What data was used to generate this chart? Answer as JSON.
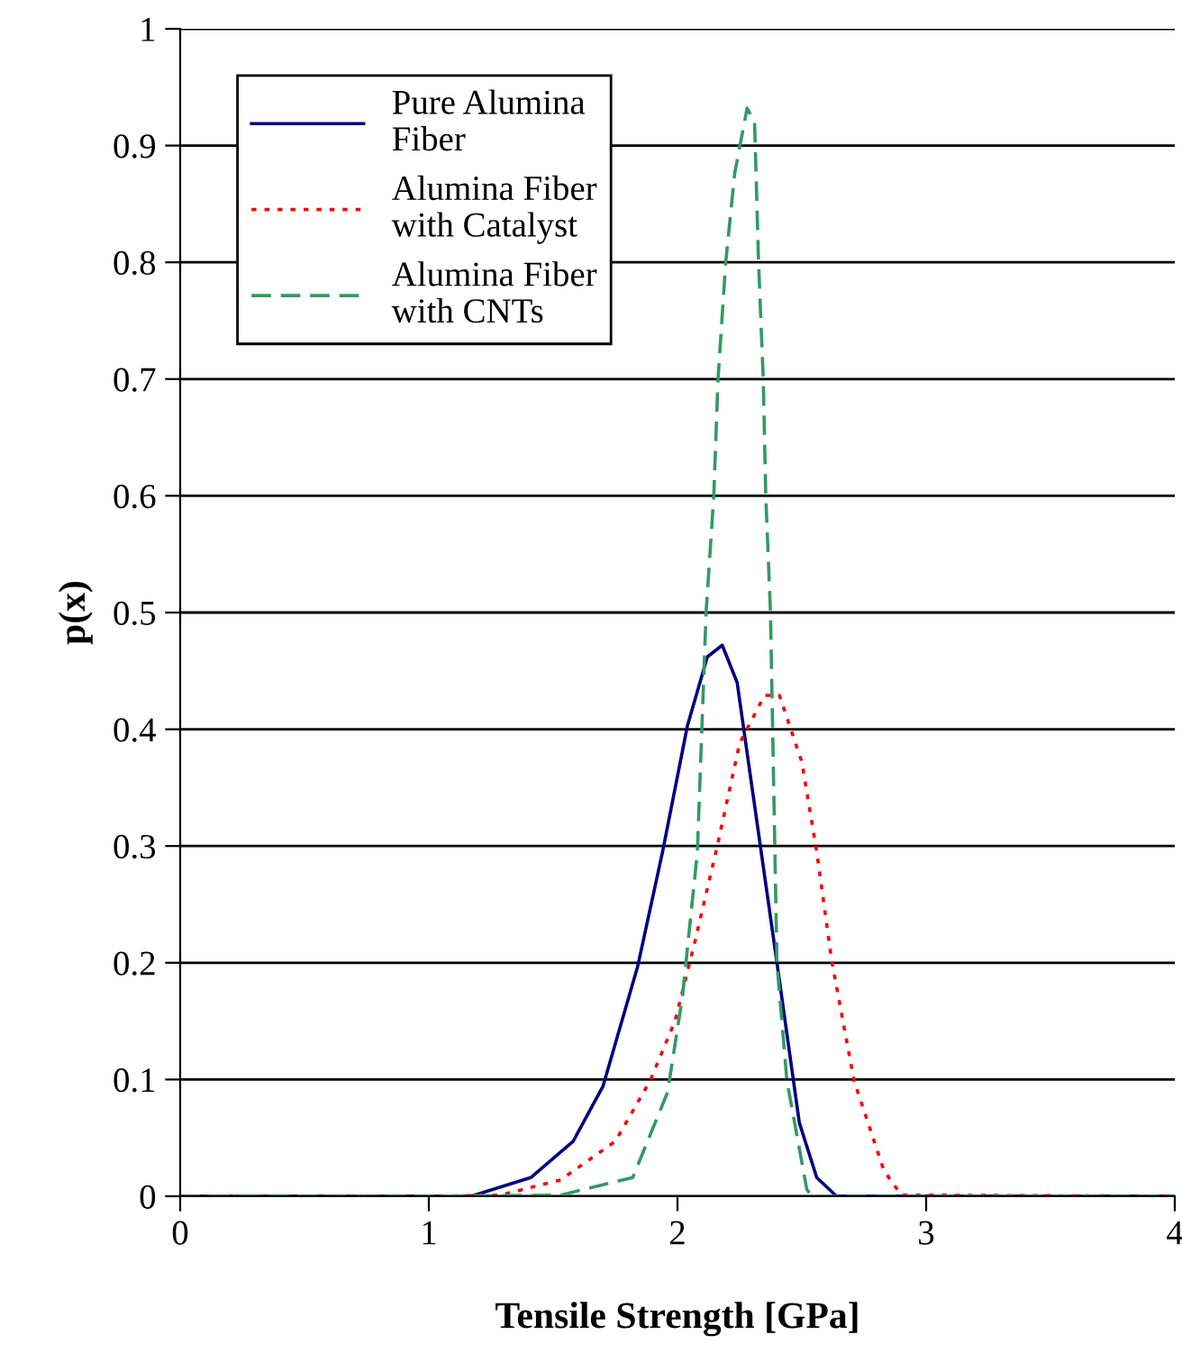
{
  "chart_data": {
    "type": "line",
    "xlabel": "Tensile Strength [GPa]",
    "ylabel": "p(x)",
    "xlim": [
      0,
      4
    ],
    "ylim": [
      0,
      1
    ],
    "xticks": [
      0,
      1,
      2,
      3,
      4
    ],
    "yticks": [
      0,
      0.1,
      0.2,
      0.3,
      0.4,
      0.5,
      0.6,
      0.7,
      0.8,
      0.9,
      1
    ],
    "grid": "y",
    "legend": "top left",
    "series": [
      {
        "name": "Pure Alumina Fiber",
        "color": "#000080",
        "line_style": "solid",
        "x": [
          0,
          1.0,
          1.17,
          1.41,
          1.58,
          1.7,
          1.84,
          1.94,
          2.04,
          2.12,
          2.18,
          2.24,
          2.3,
          2.4,
          2.49,
          2.56,
          2.64,
          4
        ],
        "values": [
          0,
          0,
          0,
          0.016,
          0.047,
          0.094,
          0.197,
          0.295,
          0.403,
          0.462,
          0.472,
          0.44,
          0.35,
          0.2,
          0.063,
          0.016,
          0,
          0
        ]
      },
      {
        "name": "Alumina Fiber with Catalyst",
        "color": "#ff0000",
        "line_style": "dotted",
        "x": [
          0,
          1.0,
          1.29,
          1.53,
          1.75,
          1.89,
          1.99,
          2.07,
          2.16,
          2.25,
          2.35,
          2.41,
          2.5,
          2.56,
          2.62,
          2.71,
          2.83,
          2.9,
          4
        ],
        "values": [
          0,
          0,
          0.001,
          0.014,
          0.047,
          0.099,
          0.15,
          0.218,
          0.3,
          0.388,
          0.429,
          0.429,
          0.372,
          0.295,
          0.202,
          0.099,
          0.022,
          0.001,
          0
        ]
      },
      {
        "name": "Alumina Fiber with CNTs",
        "color": "#339966",
        "line_style": "dashed",
        "x": [
          0,
          1.0,
          1.53,
          1.82,
          1.96,
          2.02,
          2.08,
          2.115,
          2.146,
          2.163,
          2.194,
          2.23,
          2.28,
          2.31,
          2.326,
          2.345,
          2.355,
          2.374,
          2.4,
          2.44,
          2.52,
          2.54,
          4
        ],
        "values": [
          0,
          0,
          0.001,
          0.016,
          0.089,
          0.171,
          0.295,
          0.5,
          0.6,
          0.7,
          0.8,
          0.876,
          0.932,
          0.92,
          0.8,
          0.7,
          0.6,
          0.5,
          0.2,
          0.099,
          0.006,
          0,
          0
        ]
      }
    ]
  }
}
